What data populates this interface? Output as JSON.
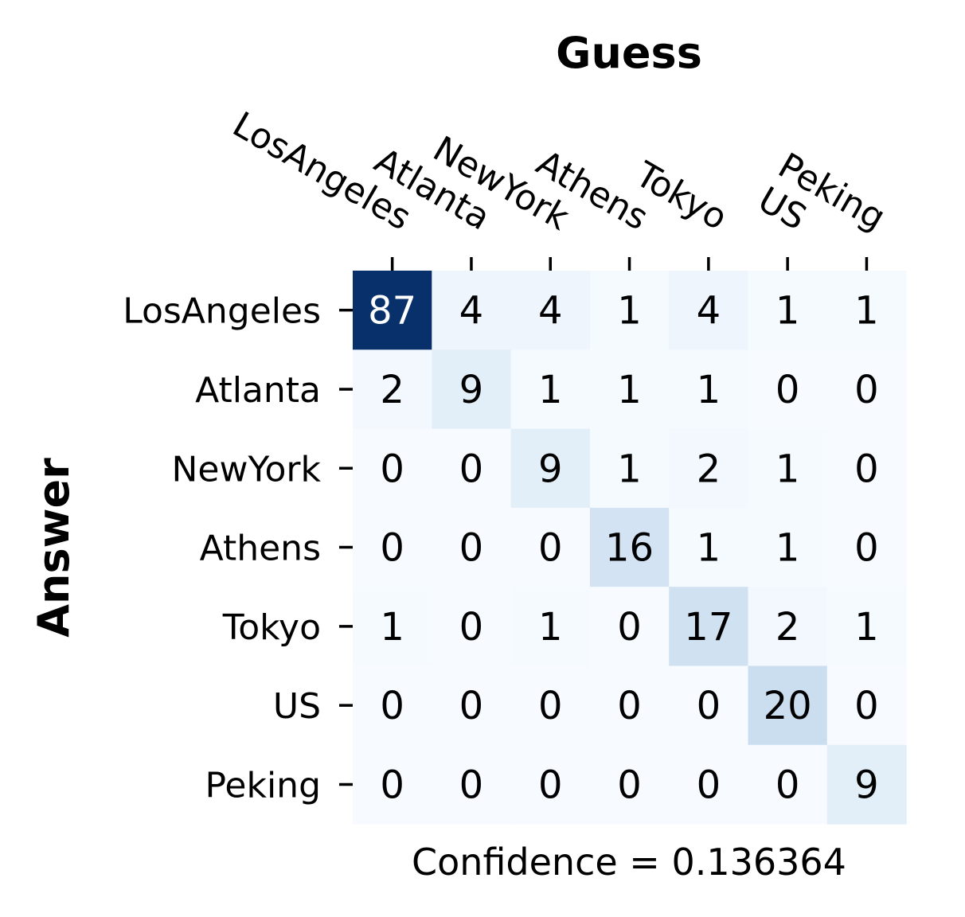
{
  "chart_data": {
    "type": "heatmap",
    "title": "",
    "xlabel": "Guess",
    "ylabel": "Answer",
    "x_categories": [
      "LosAngeles",
      "Atlanta",
      "NewYork",
      "Athens",
      "Tokyo",
      "US",
      "Peking"
    ],
    "y_categories": [
      "LosAngeles",
      "Atlanta",
      "NewYork",
      "Athens",
      "Tokyo",
      "US",
      "Peking"
    ],
    "values": [
      [
        87,
        4,
        4,
        1,
        4,
        1,
        1
      ],
      [
        2,
        9,
        1,
        1,
        1,
        0,
        0
      ],
      [
        0,
        0,
        9,
        1,
        2,
        1,
        0
      ],
      [
        0,
        0,
        0,
        16,
        1,
        1,
        0
      ],
      [
        1,
        0,
        1,
        0,
        17,
        2,
        1
      ],
      [
        0,
        0,
        0,
        0,
        0,
        20,
        0
      ],
      [
        0,
        0,
        0,
        0,
        0,
        0,
        9
      ]
    ],
    "colormap": "Blues",
    "colorbar": false,
    "x_axis_position": "top",
    "footer": "Confidence = 0.136364"
  }
}
